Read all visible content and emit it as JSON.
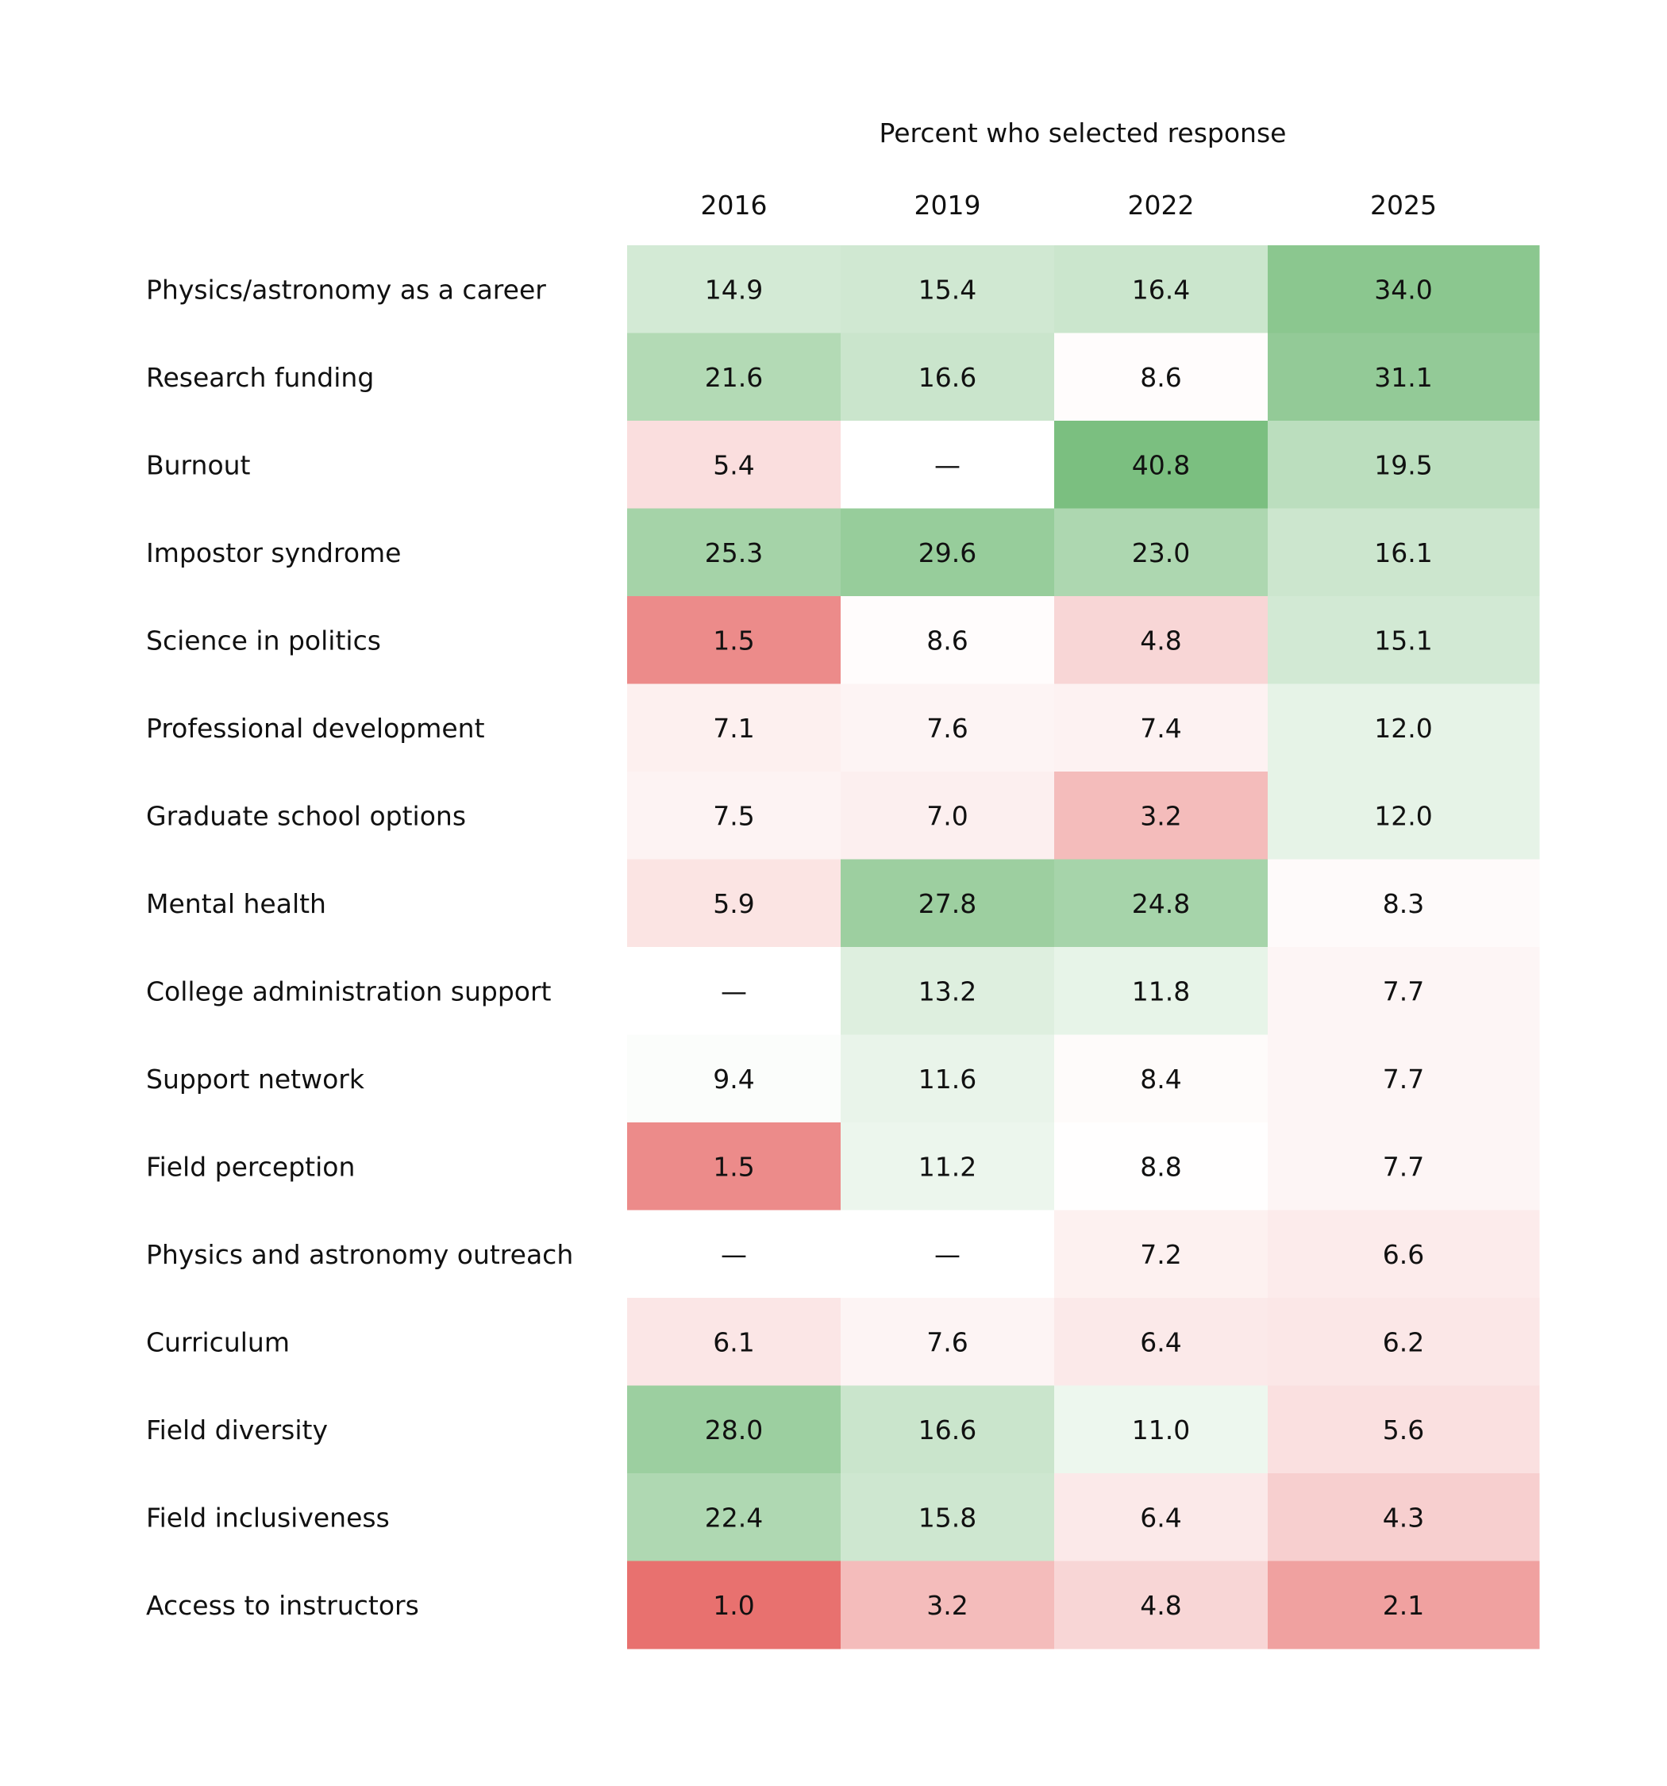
{
  "chart_data": {
    "type": "heatmap",
    "title": "Percent who selected response",
    "columns": [
      "2016",
      "2019",
      "2022",
      "2025"
    ],
    "rows": [
      {
        "label": "Physics/astronomy as a career",
        "values": [
          14.9,
          15.4,
          16.4,
          34.0
        ],
        "display": [
          "14.9",
          "15.4",
          "16.4",
          "34.0"
        ]
      },
      {
        "label": "Research funding",
        "values": [
          21.6,
          16.6,
          8.6,
          31.1
        ],
        "display": [
          "21.6",
          "16.6",
          "8.6",
          "31.1"
        ]
      },
      {
        "label": "Burnout",
        "values": [
          5.4,
          null,
          40.8,
          19.5
        ],
        "display": [
          "5.4",
          "—",
          "40.8",
          "19.5"
        ]
      },
      {
        "label": "Impostor syndrome",
        "values": [
          25.3,
          29.6,
          23.0,
          16.1
        ],
        "display": [
          "25.3",
          "29.6",
          "23.0",
          "16.1"
        ]
      },
      {
        "label": "Science in politics",
        "values": [
          1.5,
          8.6,
          4.8,
          15.1
        ],
        "display": [
          "1.5",
          "8.6",
          "4.8",
          "15.1"
        ]
      },
      {
        "label": "Professional development",
        "values": [
          7.1,
          7.6,
          7.4,
          12.0
        ],
        "display": [
          "7.1",
          "7.6",
          "7.4",
          "12.0"
        ]
      },
      {
        "label": "Graduate school options",
        "values": [
          7.5,
          7.0,
          3.2,
          12.0
        ],
        "display": [
          "7.5",
          "7.0",
          "3.2",
          "12.0"
        ]
      },
      {
        "label": "Mental health",
        "values": [
          5.9,
          27.8,
          24.8,
          8.3
        ],
        "display": [
          "5.9",
          "27.8",
          "24.8",
          "8.3"
        ]
      },
      {
        "label": "College administration support",
        "values": [
          null,
          13.2,
          11.8,
          7.7
        ],
        "display": [
          "—",
          "13.2",
          "11.8",
          "7.7"
        ]
      },
      {
        "label": "Support network",
        "values": [
          9.4,
          11.6,
          8.4,
          7.7
        ],
        "display": [
          "9.4",
          "11.6",
          "8.4",
          "7.7"
        ]
      },
      {
        "label": "Field perception",
        "values": [
          1.5,
          11.2,
          8.8,
          7.7
        ],
        "display": [
          "1.5",
          "11.2",
          "8.8",
          "7.7"
        ]
      },
      {
        "label": "Physics and astronomy outreach",
        "values": [
          null,
          null,
          7.2,
          6.6
        ],
        "display": [
          "—",
          "—",
          "7.2",
          "6.6"
        ]
      },
      {
        "label": "Curriculum",
        "values": [
          6.1,
          7.6,
          6.4,
          6.2
        ],
        "display": [
          "6.1",
          "7.6",
          "6.4",
          "6.2"
        ]
      },
      {
        "label": "Field diversity",
        "values": [
          28.0,
          16.6,
          11.0,
          5.6
        ],
        "display": [
          "28.0",
          "16.6",
          "11.0",
          "5.6"
        ]
      },
      {
        "label": "Field inclusiveness",
        "values": [
          22.4,
          15.8,
          6.4,
          4.3
        ],
        "display": [
          "22.4",
          "15.8",
          "6.4",
          "4.3"
        ]
      },
      {
        "label": "Access to instructors",
        "values": [
          1.0,
          3.2,
          4.8,
          2.1
        ],
        "display": [
          "1.0",
          "3.2",
          "4.8",
          "2.1"
        ]
      }
    ],
    "colors": {
      "low": "#e8716f",
      "mid": "#ffffff",
      "high": "#7bbf80",
      "missing": "#ffffff"
    },
    "grid": false,
    "legend": "none"
  }
}
